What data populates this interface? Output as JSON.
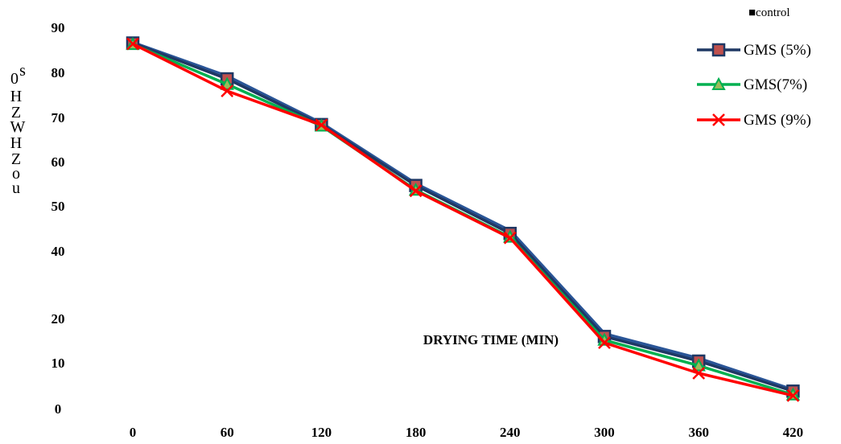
{
  "chart_data": {
    "type": "line",
    "xlabel": "DRYING TIME (MIN)",
    "ylabel_glyphs": [
      "0",
      "s",
      "H",
      "Z",
      "W",
      "H",
      "Z",
      "o",
      "u"
    ],
    "x": [
      0,
      60,
      120,
      180,
      240,
      300,
      360,
      420
    ],
    "x_tick_labels": [
      "0",
      "60",
      "120",
      "180",
      "240",
      "300",
      "360",
      "420"
    ],
    "y_tick_labels": [
      "90",
      "80",
      "70",
      "60",
      "50",
      "40",
      "20",
      "10",
      "0"
    ],
    "y_ticks": [
      90,
      80,
      70,
      60,
      50,
      40,
      20,
      10,
      0
    ],
    "ylim": [
      0,
      90
    ],
    "grid": false,
    "legend_position": "top-right",
    "legend_header": "■control",
    "series": [
      {
        "name": "control",
        "color": "#2a5597",
        "marker": "none",
        "values": [
          86.5,
          79,
          68.5,
          55,
          44.5,
          21.5,
          16,
          9
        ]
      },
      {
        "name": "GMS (5%)",
        "color": "#1f3864",
        "marker": "square",
        "values": [
          86.5,
          78.5,
          68.3,
          54.7,
          44,
          21,
          15.5,
          8.8
        ]
      },
      {
        "name": "GMS(7%)",
        "color": "#00b050",
        "marker": "triangle",
        "values": [
          86.2,
          77.3,
          68,
          53.7,
          43.2,
          20.2,
          14.5,
          8
        ]
      },
      {
        "name": "GMS (9%)",
        "color": "#ff0000",
        "marker": "x",
        "values": [
          86.3,
          75.8,
          68.2,
          53.5,
          43,
          19.6,
          12.8,
          7.8
        ]
      }
    ],
    "legend_entries": [
      "GMS (5%)",
      "GMS(7%)",
      "GMS (9%)"
    ]
  }
}
